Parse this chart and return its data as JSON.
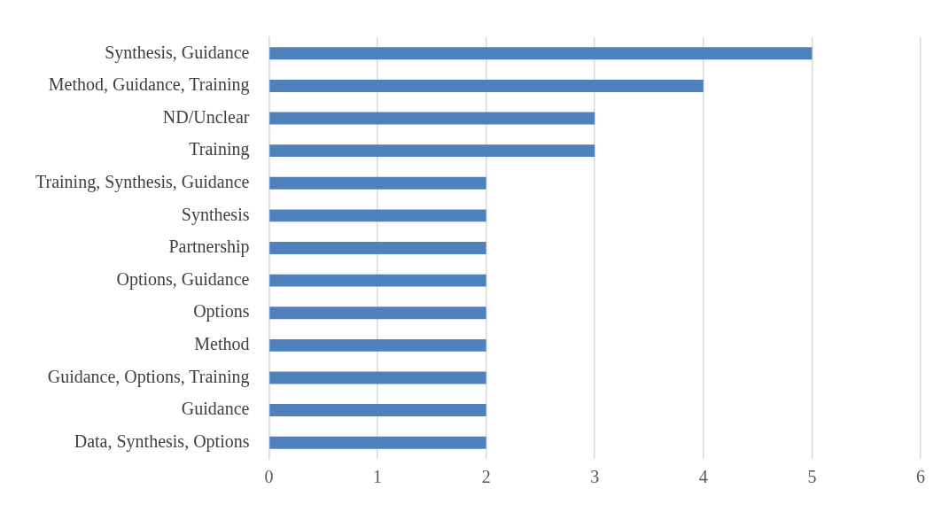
{
  "chart_data": {
    "type": "bar",
    "orientation": "horizontal",
    "categories": [
      "Synthesis, Guidance",
      "Method, Guidance, Training",
      "ND/Unclear",
      "Training",
      "Training, Synthesis, Guidance",
      "Synthesis",
      "Partnership",
      "Options, Guidance",
      "Options",
      "Method",
      "Guidance, Options, Training",
      "Guidance",
      "Data, Synthesis, Options"
    ],
    "values": [
      5,
      4,
      3,
      3,
      2,
      2,
      2,
      2,
      2,
      2,
      2,
      2,
      2
    ],
    "color": "#4f81bd",
    "xlim": [
      0,
      6
    ],
    "xticks": [
      0,
      1,
      2,
      3,
      4,
      5,
      6
    ],
    "grid": "x",
    "legend": false
  }
}
